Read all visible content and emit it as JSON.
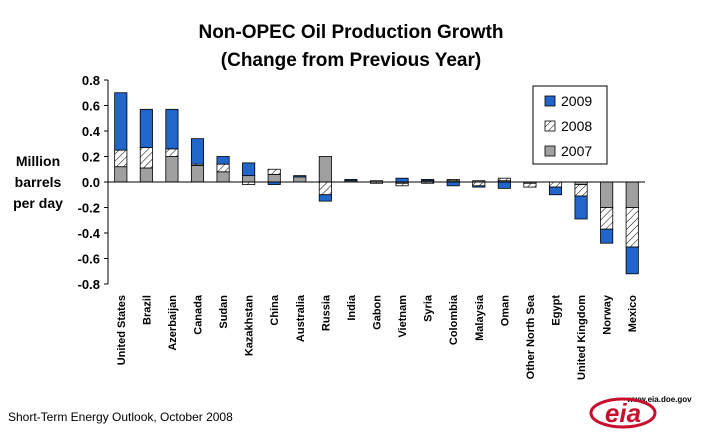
{
  "chart_data": {
    "type": "bar",
    "stacked": true,
    "title": "Non-OPEC Oil Production Growth",
    "subtitle": "(Change from Previous Year)",
    "ylabel": [
      "Million",
      "barrels",
      "per day"
    ],
    "ylim": [
      -0.8,
      0.8
    ],
    "yticks": [
      "0.8",
      "0.6",
      "0.4",
      "0.2",
      "0.0",
      "-0.2",
      "-0.4",
      "-0.6",
      "-0.8"
    ],
    "grid": false,
    "legend_position": "top-right",
    "categories": [
      "United States",
      "Brazil",
      "Azerbaijan",
      "Canada",
      "Sudan",
      "Kazakhstan",
      "China",
      "Australia",
      "Russia",
      "India",
      "Gabon",
      "Vietnam",
      "Syria",
      "Colombia",
      "Malaysia",
      "Oman",
      "Other North Sea",
      "Egypt",
      "United Kingdom",
      "Norway",
      "Mexico"
    ],
    "series": [
      {
        "name": "2007",
        "values": [
          0.12,
          0.11,
          0.2,
          0.13,
          0.08,
          0.05,
          0.06,
          0.04,
          0.2,
          0.01,
          0.01,
          -0.01,
          0.01,
          0.01,
          0.01,
          0.01,
          -0.01,
          0.0,
          -0.02,
          -0.2,
          -0.2
        ]
      },
      {
        "name": "2008",
        "values": [
          0.13,
          0.16,
          0.06,
          0.01,
          0.06,
          -0.02,
          0.04,
          0.0,
          -0.1,
          0.0,
          -0.01,
          -0.02,
          -0.01,
          0.01,
          -0.03,
          0.02,
          -0.03,
          -0.04,
          -0.09,
          -0.17,
          -0.31
        ]
      },
      {
        "name": "2009",
        "values": [
          0.45,
          0.3,
          0.31,
          0.2,
          0.06,
          0.1,
          -0.02,
          0.01,
          -0.05,
          0.01,
          0.0,
          0.03,
          0.01,
          -0.03,
          -0.01,
          -0.05,
          0.0,
          -0.06,
          -0.18,
          -0.11,
          -0.21
        ]
      }
    ],
    "colors": {
      "2009": "#2266cc",
      "2008": "hatch",
      "2007": "#a0a0a0"
    }
  },
  "legend": [
    {
      "label": "2009",
      "style": "solid-blue"
    },
    {
      "label": "2008",
      "style": "hatch"
    },
    {
      "label": "2007",
      "style": "solid-gray"
    }
  ],
  "source": "Short-Term Energy Outlook, October 2008",
  "logo": {
    "text": "eia",
    "url": "www.eia.doe.gov"
  }
}
